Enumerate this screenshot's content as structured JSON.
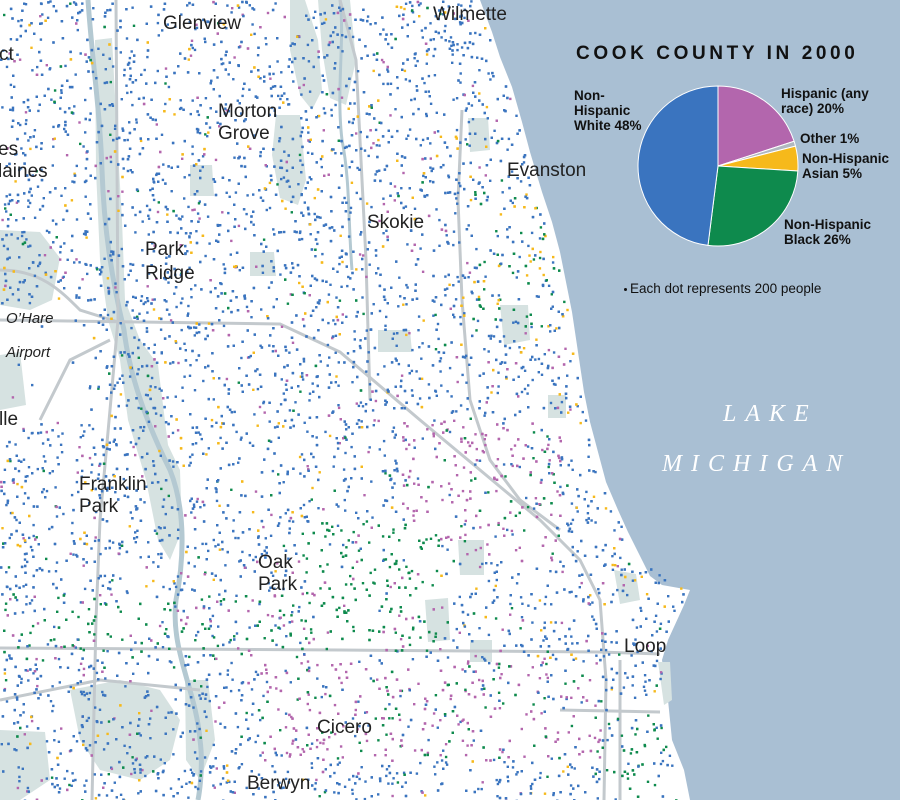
{
  "map": {
    "title": "COOK COUNTY IN 2000",
    "note": "Each dot represents 200 people",
    "lake_label": [
      "LAKE",
      "MICHIGAN"
    ],
    "places": [
      {
        "key": "wilmette",
        "text": "Wilmette"
      },
      {
        "key": "glenview",
        "text": "Glenview"
      },
      {
        "key": "morton-grove",
        "text": "Morton\nGrove"
      },
      {
        "key": "evanston",
        "text": "Evanston"
      },
      {
        "key": "skokie",
        "text": "Skokie"
      },
      {
        "key": "park-ridge",
        "text": "Park\nRidge"
      },
      {
        "key": "ohare-airport",
        "text": "O’Hare\n\nAirport"
      },
      {
        "key": "franklin-park",
        "text": "Franklin\nPark"
      },
      {
        "key": "oak-park",
        "text": "Oak\nPark"
      },
      {
        "key": "loop",
        "text": "Loop"
      },
      {
        "key": "cicero",
        "text": "Cicero"
      },
      {
        "key": "berwyn",
        "text": "Berwyn"
      },
      {
        "key": "des-plaines-partial",
        "text": "es\nlaines"
      },
      {
        "key": "clipped-ct",
        "text": "ct"
      },
      {
        "key": "clipped-lle",
        "text": "lle"
      }
    ],
    "legend": [
      {
        "label": "Non-Hispanic White 48%",
        "percent": 48,
        "color": "#3a74bf"
      },
      {
        "label": "Hispanic (any race) 20%",
        "percent": 20,
        "color": "#b366ad"
      },
      {
        "label": "Other 1%",
        "percent": 1,
        "color": "#b0b8c0"
      },
      {
        "label": "Non-Hispanic Asian 5%",
        "percent": 5,
        "color": "#f6b91b"
      },
      {
        "label": "Non-Hispanic Black 26%",
        "percent": 26,
        "color": "#0e8a4d"
      }
    ],
    "colors": {
      "lake": "#a9bfd3",
      "park": "#d6e2e1",
      "river": "#b4c9d2",
      "road": "#c3c9cd",
      "white": "#3a74bf",
      "hispanic": "#b366ad",
      "black": "#0e8a4d",
      "asian": "#f6b91b",
      "other": "#b0b8c0"
    }
  }
}
